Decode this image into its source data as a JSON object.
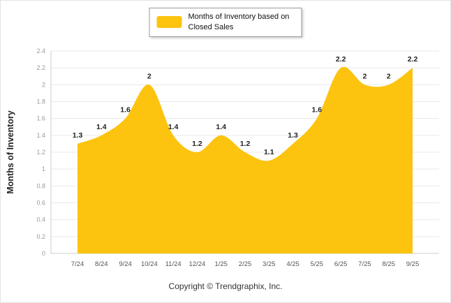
{
  "legend": {
    "label": "Months of Inventory based on Closed Sales"
  },
  "footer": {
    "copyright": "Copyright © Trendgraphix, Inc."
  },
  "chart_data": {
    "type": "area",
    "title": "",
    "categories": [
      "7/24",
      "8/24",
      "9/24",
      "10/24",
      "11/24",
      "12/24",
      "1/25",
      "2/25",
      "3/25",
      "4/25",
      "5/25",
      "6/25",
      "7/25",
      "8/25",
      "9/25"
    ],
    "values": [
      1.3,
      1.4,
      1.6,
      2,
      1.4,
      1.2,
      1.4,
      1.2,
      1.1,
      1.3,
      1.6,
      2.2,
      2,
      2,
      2.2
    ],
    "series_name": "Months of Inventory based on Closed Sales",
    "xlabel": "",
    "ylabel": "Months of Inventory",
    "ylim": [
      0,
      2.4
    ],
    "ytick_step": 0.2,
    "grid": true,
    "legend_position": "top-center",
    "fill_color": "#FCC40F",
    "label_color": "#222222",
    "tick_color": "#999999",
    "xlabel_color": "#555555",
    "grid_color": "#e9e9e9",
    "axis_color": "#cccccc"
  }
}
